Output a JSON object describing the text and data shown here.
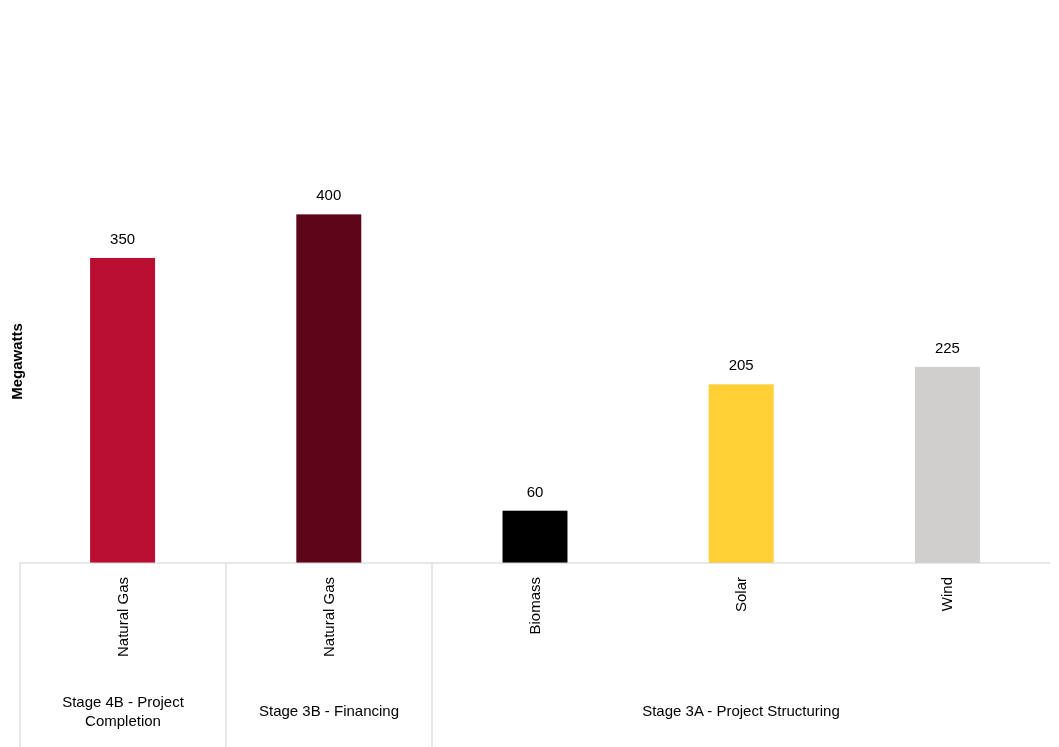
{
  "chart_data": {
    "type": "bar",
    "ylabel": "Megawatts",
    "categories": [
      "Natural Gas",
      "Natural Gas",
      "Biomass",
      "Solar",
      "Wind"
    ],
    "values": [
      350,
      400,
      60,
      205,
      225
    ],
    "colors": [
      "#b90e31",
      "#5e0619",
      "#000000",
      "#ffd036",
      "#d0cfcd"
    ],
    "data_labels": true,
    "annotations": [
      "Stage 4B - Project Completion",
      "Stage 3B - Financing",
      "Stage 3A - Project Structuring"
    ]
  }
}
